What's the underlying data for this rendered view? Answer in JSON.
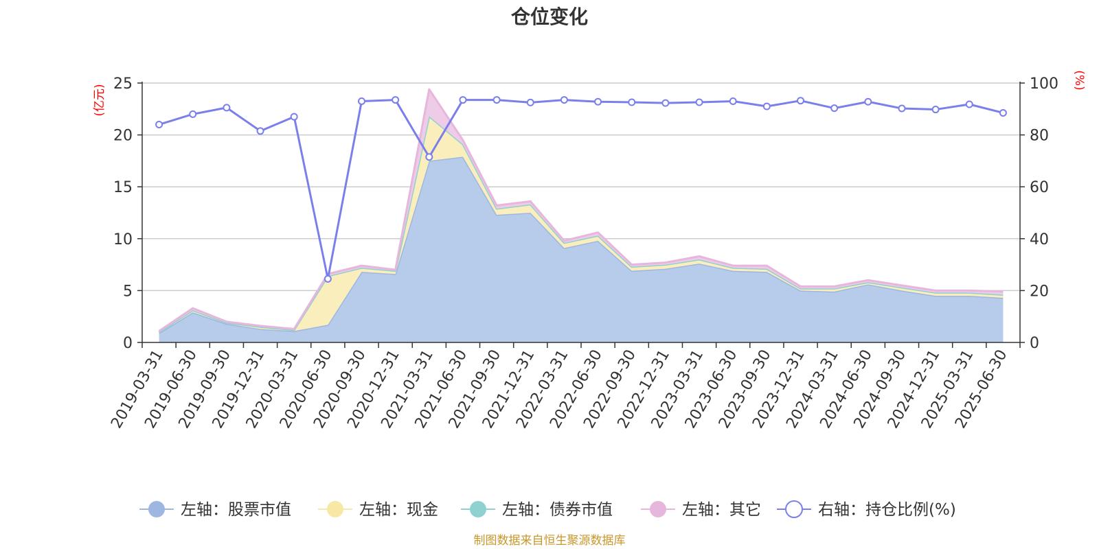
{
  "chart_data": {
    "type": "area",
    "title": "仓位变化",
    "left_axis_unit": "(亿元)",
    "right_axis_unit": "(%)",
    "left_ylim": [
      0,
      25
    ],
    "left_yticks": [
      "0",
      "5",
      "10",
      "15",
      "20",
      "25"
    ],
    "right_ylim": [
      0,
      100
    ],
    "right_yticks": [
      "0",
      "20",
      "40",
      "60",
      "80",
      "100"
    ],
    "grid": true,
    "legend_position": "bottom",
    "categories": [
      "2019-03-31",
      "2019-06-30",
      "2019-09-30",
      "2019-12-31",
      "2020-03-31",
      "2020-06-30",
      "2020-09-30",
      "2020-12-31",
      "2021-03-31",
      "2021-06-30",
      "2021-09-30",
      "2021-12-31",
      "2022-03-31",
      "2022-06-30",
      "2022-09-30",
      "2022-12-31",
      "2023-03-31",
      "2023-06-30",
      "2023-09-30",
      "2023-12-31",
      "2024-03-31",
      "2024-06-30",
      "2024-09-30",
      "2024-12-31",
      "2025-03-31",
      "2025-06-30"
    ],
    "series": [
      {
        "name": "左轴：股票市值",
        "axis": "left",
        "stacked": true,
        "color": "#9db7e0",
        "fill": "#b7cbea",
        "values": [
          0.9,
          2.9,
          1.8,
          1.3,
          1.1,
          1.7,
          6.8,
          6.6,
          17.5,
          17.9,
          12.3,
          12.5,
          9.1,
          9.8,
          6.9,
          7.1,
          7.6,
          6.9,
          6.8,
          5.0,
          4.9,
          5.6,
          5.0,
          4.5,
          4.5,
          4.3
        ]
      },
      {
        "name": "左轴：现金",
        "axis": "left",
        "stacked": true,
        "color": "#f8e8a6",
        "fill": "#faeebc",
        "values": [
          0.1,
          0.2,
          0.1,
          0.2,
          0.1,
          4.7,
          0.4,
          0.3,
          4.3,
          1.2,
          0.6,
          0.8,
          0.5,
          0.5,
          0.4,
          0.4,
          0.4,
          0.3,
          0.3,
          0.2,
          0.3,
          0.2,
          0.3,
          0.3,
          0.3,
          0.3
        ]
      },
      {
        "name": "左轴：债券市值",
        "axis": "left",
        "stacked": true,
        "color": "#8fd1d1",
        "fill": "#a9dcdc",
        "values": [
          0,
          0,
          0,
          0,
          0,
          0,
          0,
          0,
          0,
          0,
          0,
          0,
          0,
          0,
          0,
          0,
          0,
          0,
          0,
          0,
          0,
          0,
          0,
          0,
          0,
          0
        ]
      },
      {
        "name": "左轴：其它",
        "axis": "left",
        "stacked": true,
        "color": "#e7b6dc",
        "fill": "#eecbe6",
        "values": [
          0.1,
          0.2,
          0.1,
          0.1,
          0.1,
          0.2,
          0.2,
          0.1,
          2.6,
          0.4,
          0.3,
          0.3,
          0.2,
          0.3,
          0.2,
          0.2,
          0.3,
          0.2,
          0.3,
          0.2,
          0.2,
          0.2,
          0.2,
          0.2,
          0.2,
          0.3
        ]
      },
      {
        "name": "右轴：持仓比例(%)",
        "axis": "right",
        "type": "line",
        "color": "#7b7fea",
        "values": [
          84,
          88,
          90.5,
          81.5,
          87,
          24.5,
          93,
          93.5,
          71.5,
          93.5,
          93.5,
          92.5,
          93.5,
          92.8,
          92.6,
          92.3,
          92.6,
          93.0,
          91.0,
          93.2,
          90.3,
          92.8,
          90.2,
          89.8,
          91.8,
          88.5
        ]
      }
    ]
  },
  "footer": {
    "source": "制图数据来自恒生聚源数据库"
  }
}
